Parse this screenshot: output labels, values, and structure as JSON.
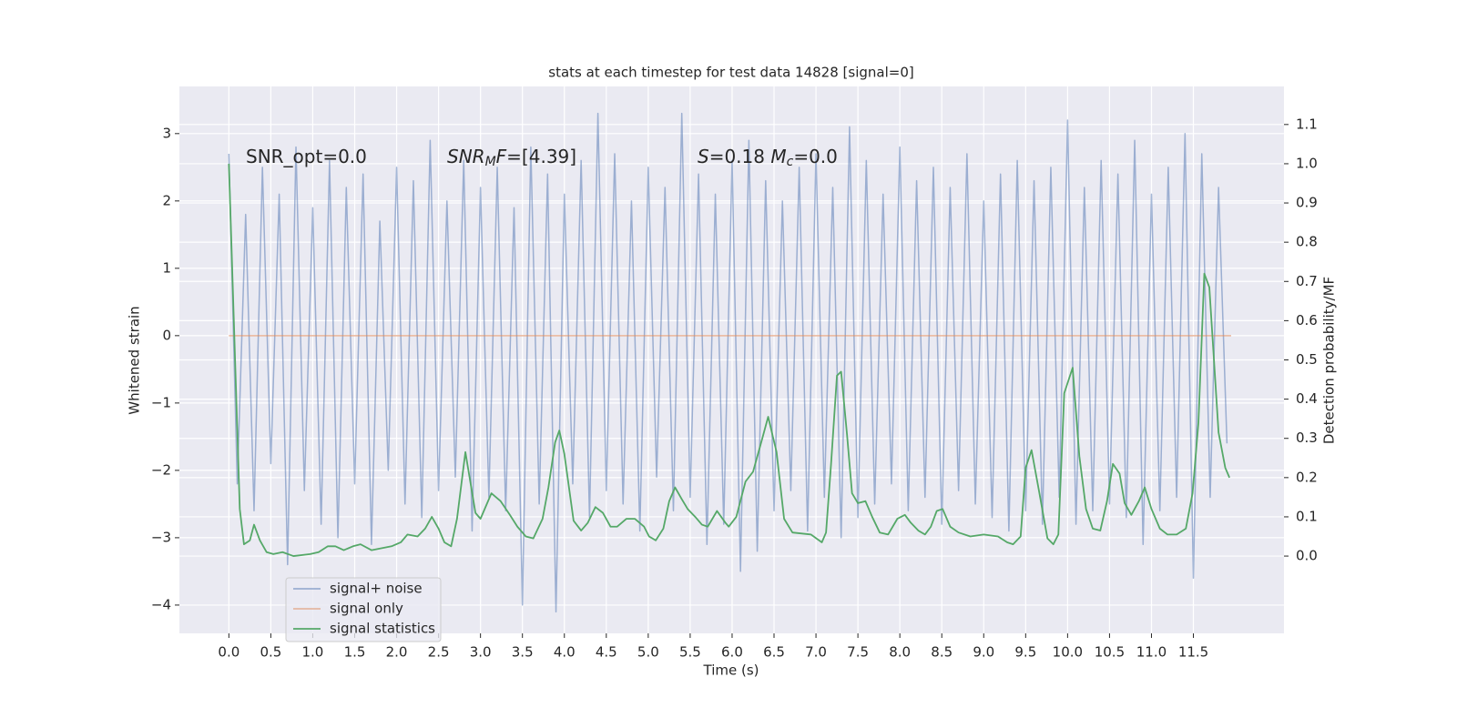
{
  "chart_data": {
    "type": "line",
    "title": "stats at each timestep for test data 14828 [signal=0]",
    "xlabel": "Time (s)",
    "ylabel": "Whitened strain",
    "y2label": "Detection probability/MF",
    "grid": true,
    "legend": "lower left",
    "xlim": [
      -0.59,
      12.58
    ],
    "ylim": [
      -4.42,
      3.7
    ],
    "y2lim": [
      -0.197,
      1.197
    ],
    "xticks": [
      {
        "value": 0,
        "label": "0.0"
      },
      {
        "value": 0.5,
        "label": "0.5"
      },
      {
        "value": 1,
        "label": "1.0"
      },
      {
        "value": 1.5,
        "label": "1.5"
      },
      {
        "value": 2,
        "label": "2.0"
      },
      {
        "value": 2.5,
        "label": "2.5"
      },
      {
        "value": 3,
        "label": "3.0"
      },
      {
        "value": 3.5,
        "label": "3.5"
      },
      {
        "value": 4,
        "label": "4.0"
      },
      {
        "value": 4.5,
        "label": "4.5"
      },
      {
        "value": 5,
        "label": "5.0"
      },
      {
        "value": 5.5,
        "label": "5.5"
      },
      {
        "value": 6,
        "label": "6.0"
      },
      {
        "value": 6.5,
        "label": "6.5"
      },
      {
        "value": 7,
        "label": "7.0"
      },
      {
        "value": 7.5,
        "label": "7.5"
      },
      {
        "value": 8,
        "label": "8.0"
      },
      {
        "value": 8.5,
        "label": "8.5"
      },
      {
        "value": 9,
        "label": "9.0"
      },
      {
        "value": 9.5,
        "label": "9.5"
      },
      {
        "value": 10,
        "label": "10.0"
      },
      {
        "value": 10.5,
        "label": "10.5"
      },
      {
        "value": 11,
        "label": "11.0"
      },
      {
        "value": 11.5,
        "label": "11.5"
      }
    ],
    "yticks": [
      {
        "value": -4,
        "label": "−4"
      },
      {
        "value": -3,
        "label": "−3"
      },
      {
        "value": -2,
        "label": "−2"
      },
      {
        "value": -1,
        "label": "−1"
      },
      0,
      1,
      2,
      3
    ],
    "y2ticks": [
      {
        "value": 0,
        "label": "0.0"
      },
      {
        "value": 0.1,
        "label": "0.1"
      },
      {
        "value": 0.2,
        "label": "0.2"
      },
      {
        "value": 0.3,
        "label": "0.3"
      },
      {
        "value": 0.4,
        "label": "0.4"
      },
      {
        "value": 0.5,
        "label": "0.5"
      },
      {
        "value": 0.6,
        "label": "0.6"
      },
      {
        "value": 0.7,
        "label": "0.7"
      },
      {
        "value": 0.8,
        "label": "0.8"
      },
      {
        "value": 0.9,
        "label": "0.9"
      },
      {
        "value": 1,
        "label": "1.0"
      },
      {
        "value": 1.1,
        "label": "1.1"
      }
    ],
    "annotations": [
      {
        "parts": [
          {
            "text": "SNR_opt=0.0"
          }
        ]
      },
      {
        "parts": [
          {
            "text": "SNR",
            "style": "italic"
          },
          {
            "text": "M",
            "style": "sub"
          },
          {
            "text": "F",
            "style": "italic"
          },
          {
            "text": "=[4.39]"
          }
        ]
      },
      {
        "parts": [
          {
            "text": "S",
            "style": "italic"
          },
          {
            "text": "=0.18  "
          },
          {
            "text": "M",
            "style": "italic"
          },
          {
            "text": "c",
            "style": "sub"
          },
          {
            "text": "=0.0"
          }
        ]
      }
    ],
    "series": [
      {
        "name": "signal+ noise",
        "color": "#4c72b0",
        "opacity": 0.5,
        "x": [
          0,
          0.1,
          0.2,
          0.3,
          0.4,
          0.5,
          0.6,
          0.7,
          0.8,
          0.9,
          1,
          1.1,
          1.2,
          1.3,
          1.4,
          1.5,
          1.6,
          1.7,
          1.8,
          1.9,
          2,
          2.1,
          2.2,
          2.3,
          2.4,
          2.5,
          2.6,
          2.7,
          2.8,
          2.9,
          3,
          3.1,
          3.2,
          3.3,
          3.4,
          3.5,
          3.6,
          3.7,
          3.8,
          3.9,
          4,
          4.1,
          4.2,
          4.3,
          4.4,
          4.5,
          4.6,
          4.7,
          4.8,
          4.9,
          5,
          5.1,
          5.2,
          5.3,
          5.4,
          5.5,
          5.6,
          5.7,
          5.8,
          5.9,
          6,
          6.1,
          6.2,
          6.3,
          6.4,
          6.5,
          6.6,
          6.7,
          6.8,
          6.9,
          7,
          7.1,
          7.2,
          7.3,
          7.4,
          7.5,
          7.6,
          7.7,
          7.8,
          7.9,
          8,
          8.1,
          8.2,
          8.3,
          8.4,
          8.5,
          8.6,
          8.7,
          8.8,
          8.9,
          9,
          9.1,
          9.2,
          9.3,
          9.4,
          9.5,
          9.6,
          9.7,
          9.8,
          9.9,
          10,
          10.1,
          10.2,
          10.3,
          10.4,
          10.5,
          10.6,
          10.7,
          10.8,
          10.9,
          11,
          11.1,
          11.2,
          11.3,
          11.4,
          11.5,
          11.6,
          11.7,
          11.8,
          11.9
        ],
        "values": [
          2.7,
          -2.2,
          1.8,
          -2.6,
          2.5,
          -1.9,
          2.1,
          -3.4,
          2.8,
          -2.3,
          1.9,
          -2.8,
          2.6,
          -3.0,
          2.2,
          -2.2,
          2.4,
          -3.1,
          1.7,
          -2.0,
          2.5,
          -2.5,
          2.3,
          -2.7,
          2.9,
          -2.3,
          2.0,
          -2.1,
          2.6,
          -2.9,
          2.2,
          -2.4,
          2.5,
          -2.6,
          1.9,
          -4.0,
          2.8,
          -2.5,
          2.4,
          -4.1,
          2.1,
          -2.2,
          2.6,
          -2.7,
          3.3,
          -2.3,
          2.7,
          -2.5,
          2.0,
          -2.9,
          2.5,
          -2.1,
          2.2,
          -2.6,
          3.3,
          -2.4,
          2.4,
          -3.1,
          2.1,
          -2.8,
          2.6,
          -3.5,
          2.9,
          -3.2,
          2.3,
          -2.6,
          2.0,
          -2.3,
          2.5,
          -2.9,
          2.7,
          -2.4,
          2.2,
          -3.0,
          3.1,
          -2.7,
          2.6,
          -2.5,
          2.1,
          -2.2,
          2.8,
          -2.6,
          2.3,
          -2.4,
          2.5,
          -2.8,
          2.2,
          -2.3,
          2.7,
          -2.5,
          2.0,
          -2.7,
          2.4,
          -2.9,
          2.6,
          -2.6,
          2.3,
          -2.8,
          2.5,
          -2.4,
          3.2,
          -2.8,
          2.2,
          -2.6,
          2.6,
          -2.5,
          2.4,
          -2.7,
          2.9,
          -3.1,
          2.1,
          -2.6,
          2.5,
          -2.4,
          3.0,
          -3.6,
          2.7,
          -2.4,
          2.2,
          -1.6
        ]
      },
      {
        "name": "signal only",
        "color": "#dd8452",
        "opacity": 0.5,
        "x": [
          0,
          11.95
        ],
        "values": [
          0,
          0
        ]
      },
      {
        "name": "signal statistics",
        "color": "#55a868",
        "opacity": 1,
        "axis": "y2",
        "x": [
          0,
          0.13,
          0.18,
          0.25,
          0.3,
          0.37,
          0.45,
          0.53,
          0.64,
          0.77,
          0.97,
          1.07,
          1.18,
          1.27,
          1.37,
          1.48,
          1.57,
          1.7,
          1.94,
          2.05,
          2.13,
          2.25,
          2.34,
          2.42,
          2.5,
          2.57,
          2.65,
          2.72,
          2.82,
          2.94,
          3.0,
          3.13,
          3.24,
          3.35,
          3.44,
          3.54,
          3.63,
          3.74,
          3.81,
          3.89,
          3.94,
          4.0,
          4.11,
          4.2,
          4.28,
          4.37,
          4.46,
          4.55,
          4.63,
          4.74,
          4.84,
          4.95,
          5.01,
          5.09,
          5.18,
          5.25,
          5.32,
          5.4,
          5.47,
          5.56,
          5.64,
          5.71,
          5.82,
          5.92,
          5.96,
          6.05,
          6.16,
          6.25,
          6.36,
          6.43,
          6.53,
          6.62,
          6.72,
          6.94,
          7.07,
          7.12,
          7.18,
          7.25,
          7.3,
          7.37,
          7.43,
          7.5,
          7.59,
          7.67,
          7.76,
          7.86,
          7.97,
          8.06,
          8.13,
          8.22,
          8.3,
          8.37,
          8.44,
          8.51,
          8.6,
          8.7,
          8.84,
          9.0,
          9.17,
          9.28,
          9.35,
          9.44,
          9.5,
          9.57,
          9.66,
          9.76,
          9.83,
          9.89,
          9.96,
          10.06,
          10.14,
          10.22,
          10.3,
          10.39,
          10.47,
          10.54,
          10.62,
          10.68,
          10.76,
          10.85,
          10.92,
          11.0,
          11.1,
          11.19,
          11.3,
          11.41,
          11.49,
          11.56,
          11.63,
          11.69,
          11.8,
          11.88,
          11.93
        ],
        "values": [
          1.0,
          0.12,
          0.03,
          0.04,
          0.08,
          0.04,
          0.01,
          0.005,
          0.01,
          0.0,
          0.005,
          0.01,
          0.025,
          0.025,
          0.015,
          0.025,
          0.03,
          0.015,
          0.025,
          0.035,
          0.055,
          0.05,
          0.07,
          0.1,
          0.07,
          0.035,
          0.025,
          0.095,
          0.265,
          0.11,
          0.095,
          0.16,
          0.14,
          0.105,
          0.075,
          0.05,
          0.045,
          0.095,
          0.175,
          0.29,
          0.32,
          0.26,
          0.09,
          0.065,
          0.085,
          0.125,
          0.11,
          0.075,
          0.075,
          0.095,
          0.095,
          0.075,
          0.05,
          0.04,
          0.07,
          0.14,
          0.175,
          0.145,
          0.12,
          0.1,
          0.08,
          0.075,
          0.115,
          0.085,
          0.075,
          0.1,
          0.19,
          0.215,
          0.3,
          0.355,
          0.265,
          0.095,
          0.06,
          0.055,
          0.035,
          0.06,
          0.235,
          0.46,
          0.47,
          0.31,
          0.16,
          0.135,
          0.14,
          0.1,
          0.06,
          0.055,
          0.095,
          0.105,
          0.085,
          0.065,
          0.055,
          0.075,
          0.115,
          0.12,
          0.075,
          0.06,
          0.05,
          0.055,
          0.05,
          0.035,
          0.03,
          0.05,
          0.225,
          0.27,
          0.165,
          0.045,
          0.03,
          0.055,
          0.415,
          0.48,
          0.255,
          0.12,
          0.07,
          0.065,
          0.14,
          0.235,
          0.21,
          0.135,
          0.105,
          0.14,
          0.175,
          0.12,
          0.07,
          0.055,
          0.055,
          0.07,
          0.16,
          0.34,
          0.72,
          0.685,
          0.315,
          0.225,
          0.2
        ]
      }
    ]
  }
}
